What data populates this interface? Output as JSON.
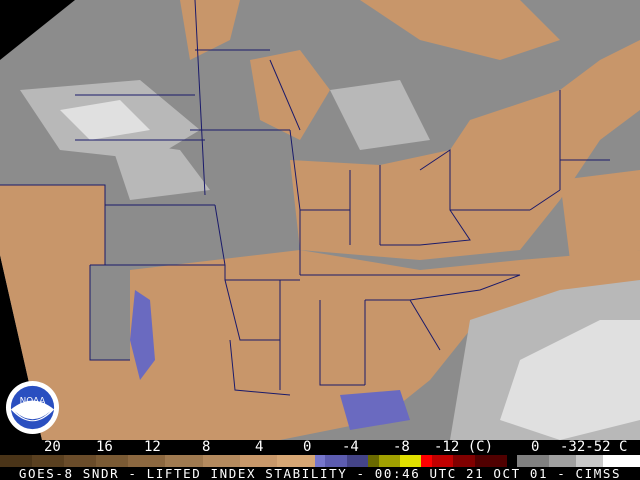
{
  "legend": {
    "labels": [
      "20",
      "16",
      "12",
      "8",
      "4",
      "0",
      "-4",
      "-8",
      "-12 (C)",
      "0",
      "-32-52 C"
    ],
    "colors": [
      "#4a3418",
      "#5a4020",
      "#6a4c2a",
      "#7a5a34",
      "#8c6840",
      "#a07a50",
      "#b48a5e",
      "#c8986a",
      "#d6a674",
      "#7676cc",
      "#5c5cb0",
      "#444488",
      "#6a6a00",
      "#a0a000",
      "#e0e000",
      "#ff0000",
      "#c00000",
      "#800000",
      "#500000",
      "#000000",
      "#808080",
      "#a0a0a0",
      "#c8c8c8",
      "#ffffff"
    ]
  },
  "caption": "GOES-8 SNDR - LIFTED INDEX STABILITY - 00:46 UTC 21 OCT 01 - CIMSS",
  "logo": "NOAA",
  "map_colors": {
    "gray": "#8c8c8c",
    "light_gray": "#b4b4b4",
    "dark_gray": "#707070",
    "tan": "#c8966a",
    "border": "#1a1a6a",
    "blue": "#6a6ac0"
  }
}
